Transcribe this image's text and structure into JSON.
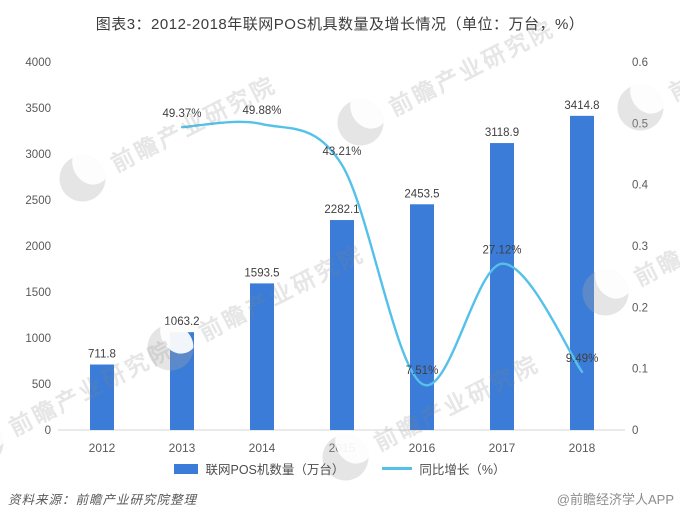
{
  "title": "图表3：2012-2018年联网POS机具数量及增长情况（单位：万台，%）",
  "chart_data": {
    "type": "bar+line combo",
    "categories": [
      "2012",
      "2013",
      "2014",
      "2015",
      "2016",
      "2017",
      "2018"
    ],
    "series": [
      {
        "name": "联网POS机数量（万台）",
        "type": "bar",
        "axis": "left",
        "color": "#3b7cd8",
        "values": [
          711.8,
          1063.2,
          1593.5,
          2282.1,
          2453.5,
          3118.9,
          3414.8
        ],
        "labels": [
          "711.8",
          "1063.2",
          "1593.5",
          "2282.1",
          "2453.5",
          "3118.9",
          "3414.8"
        ]
      },
      {
        "name": "同比增长（%）",
        "type": "line",
        "axis": "right",
        "color": "#55c1e9",
        "values": [
          null,
          0.4937,
          0.4988,
          0.4321,
          0.0751,
          0.2712,
          0.0949
        ],
        "labels": [
          "",
          "49.37%",
          "49.88%",
          "43.21%",
          "7.51%",
          "27.12%",
          "9.49%"
        ]
      }
    ],
    "left_axis": {
      "min": 0,
      "max": 4000,
      "step": 500,
      "tick_labels": [
        "0",
        "500",
        "1000",
        "1500",
        "2000",
        "2500",
        "3000",
        "3500",
        "4000"
      ]
    },
    "right_axis": {
      "min": 0,
      "max": 0.6,
      "step": 0.1,
      "tick_labels": [
        "0",
        "0.1",
        "0.2",
        "0.3",
        "0.4",
        "0.5",
        "0.6"
      ]
    },
    "grid": false,
    "legend_position": "bottom"
  },
  "colors": {
    "bar": "#3b7cd8",
    "line": "#55c1e9",
    "axis_text": "#595959",
    "data_label": "#404040",
    "axis_line": "#d6d6d6"
  },
  "watermark": {
    "text": "前瞻产业研究院",
    "logo": "qianzhan-swoosh-logo"
  },
  "footer": {
    "source": "资料来源：前瞻产业研究院整理",
    "brand": "@前瞻经济学人APP"
  }
}
